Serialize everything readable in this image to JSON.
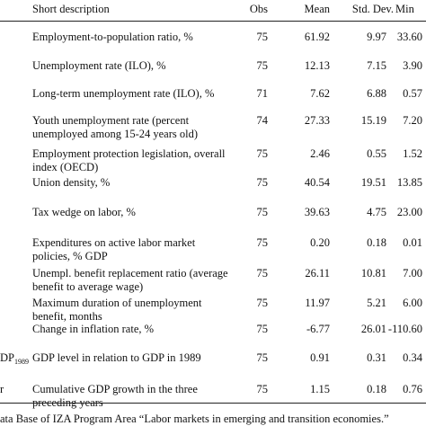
{
  "header": {
    "description": "Short description",
    "obs": "Obs",
    "mean": "Mean",
    "std_dev": "Std. Dev.",
    "min": "Min"
  },
  "rows": [
    {
      "label": "",
      "description": [
        "Employment-to-population ratio, %"
      ],
      "obs": "75",
      "mean": "61.92",
      "std": "9.97",
      "min": "33.60"
    },
    {
      "label": "",
      "description": [
        "Unemployment rate (ILO), %"
      ],
      "obs": "75",
      "mean": "12.13",
      "std": "7.15",
      "min": "3.90"
    },
    {
      "label": "",
      "description": [
        "Long-term unemployment rate (ILO), %"
      ],
      "obs": "71",
      "mean": "7.62",
      "std": "6.88",
      "min": "0.57"
    },
    {
      "label": "",
      "description": [
        "Youth unemployment rate (percent",
        "unemployed among 15-24 years old)"
      ],
      "obs": "74",
      "mean": "27.33",
      "std": "15.19",
      "min": "7.20"
    },
    {
      "label": "",
      "description": [
        "Employment protection legislation, overall",
        "index (OECD)"
      ],
      "obs": "75",
      "mean": "2.46",
      "std": "0.55",
      "min": "1.52"
    },
    {
      "label": "",
      "description": [
        "Union density, %"
      ],
      "obs": "75",
      "mean": "40.54",
      "std": "19.51",
      "min": "13.85"
    },
    {
      "label": "",
      "description": [
        "Tax wedge on labor, %"
      ],
      "obs": "75",
      "mean": "39.63",
      "std": "4.75",
      "min": "23.00"
    },
    {
      "label": "",
      "description": [
        "Expenditures on active labor market",
        "policies, % GDP"
      ],
      "obs": "75",
      "mean": "0.20",
      "std": "0.18",
      "min": "0.01"
    },
    {
      "label": "",
      "description": [
        "Unempl. benefit replacement ratio (average",
        "benefit to average wage)"
      ],
      "obs": "75",
      "mean": "26.11",
      "std": "10.81",
      "min": "7.00"
    },
    {
      "label": "",
      "description": [
        "Maximum duration of unemployment",
        "benefit, months"
      ],
      "obs": "75",
      "mean": "11.97",
      "std": "5.21",
      "min": "6.00"
    },
    {
      "label": "",
      "description": [
        "Change in inflation rate, %"
      ],
      "obs": "75",
      "mean": "-6.77",
      "std": "26.01",
      "min": "-110.60"
    },
    {
      "label": "DP",
      "label_sub": "1989",
      "description": [
        "GDP level in relation to GDP in 1989"
      ],
      "obs": "75",
      "mean": "0.91",
      "std": "0.31",
      "min": "0.34"
    },
    {
      "label": "r",
      "description": [
        "Cumulative GDP growth in the three",
        "preceding years"
      ],
      "obs": "75",
      "mean": "1.15",
      "std": "0.18",
      "min": "0.76"
    }
  ],
  "footnote": "ata Base of IZA Program Area “Labor markets in emerging and transition economies.”"
}
